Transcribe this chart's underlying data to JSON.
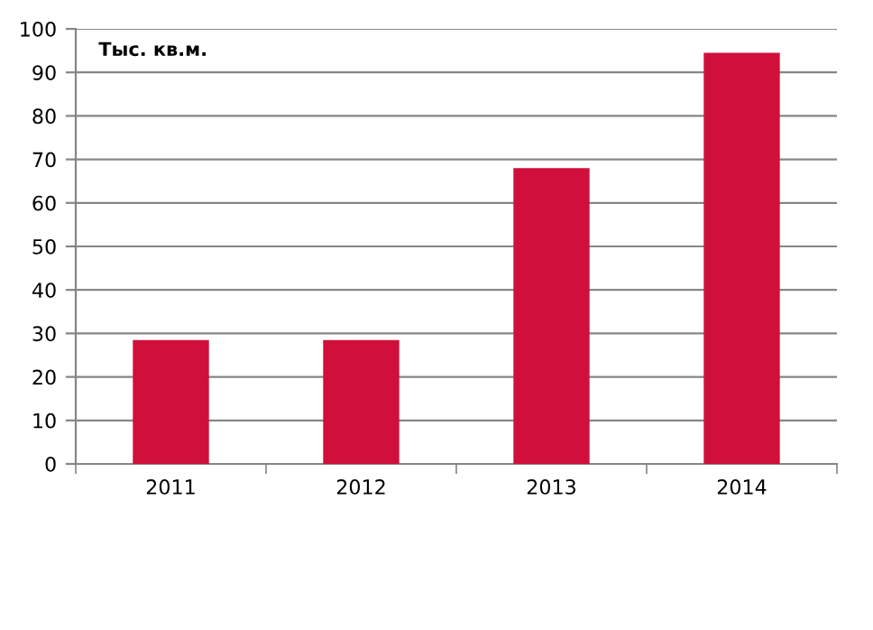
{
  "chart_data": {
    "type": "bar",
    "ylabel": "Тыс. кв.м.",
    "categories": [
      "2011",
      "2012",
      "2013",
      "2014"
    ],
    "values": [
      28.5,
      28.5,
      68,
      94.5
    ],
    "color": "#d0103a",
    "ylim": [
      0,
      100
    ],
    "yticks": [
      0,
      10,
      20,
      30,
      40,
      50,
      60,
      70,
      80,
      90,
      100
    ],
    "grid": "y",
    "legend": false
  }
}
